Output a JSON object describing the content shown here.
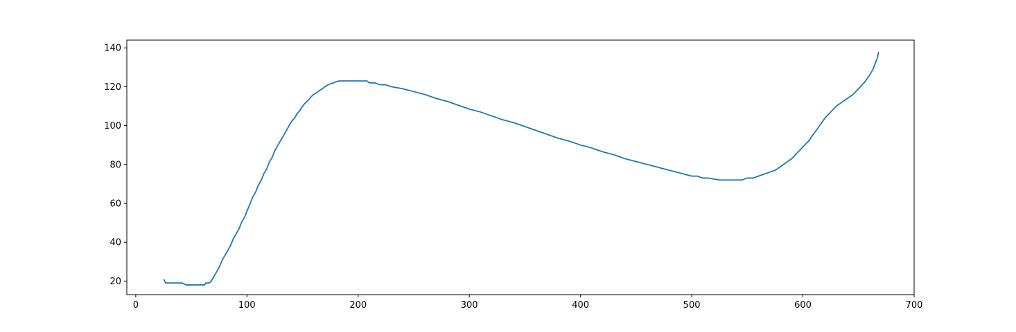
{
  "chart_data": {
    "type": "line",
    "title": "",
    "xlabel": "",
    "ylabel": "",
    "xlim": [
      -8,
      700
    ],
    "ylim": [
      13,
      144
    ],
    "xticks": [
      0,
      100,
      200,
      300,
      400,
      500,
      600,
      700
    ],
    "yticks": [
      20,
      40,
      60,
      80,
      100,
      120,
      140
    ],
    "xtick_labels": [
      "0",
      "100",
      "200",
      "300",
      "400",
      "500",
      "600",
      "700"
    ],
    "ytick_labels": [
      "20",
      "40",
      "60",
      "80",
      "100",
      "120",
      "140"
    ],
    "grid": false,
    "legend": "none",
    "series": [
      {
        "color": "#1f77b4",
        "points": [
          [
            25,
            21
          ],
          [
            27,
            19
          ],
          [
            30,
            19
          ],
          [
            35,
            19
          ],
          [
            40,
            19
          ],
          [
            42,
            19
          ],
          [
            45,
            18
          ],
          [
            50,
            18
          ],
          [
            55,
            18
          ],
          [
            60,
            18
          ],
          [
            62,
            18
          ],
          [
            63,
            19
          ],
          [
            66,
            19
          ],
          [
            68,
            20
          ],
          [
            70,
            22
          ],
          [
            72,
            24
          ],
          [
            75,
            27
          ],
          [
            78,
            31
          ],
          [
            80,
            33
          ],
          [
            82,
            35
          ],
          [
            85,
            38
          ],
          [
            88,
            42
          ],
          [
            90,
            44
          ],
          [
            93,
            47
          ],
          [
            95,
            50
          ],
          [
            98,
            53
          ],
          [
            100,
            56
          ],
          [
            103,
            60
          ],
          [
            105,
            63
          ],
          [
            108,
            66
          ],
          [
            110,
            69
          ],
          [
            113,
            72
          ],
          [
            115,
            75
          ],
          [
            118,
            78
          ],
          [
            120,
            81
          ],
          [
            123,
            84
          ],
          [
            125,
            87
          ],
          [
            128,
            90
          ],
          [
            130,
            92
          ],
          [
            133,
            95
          ],
          [
            135,
            97
          ],
          [
            138,
            100
          ],
          [
            140,
            102
          ],
          [
            143,
            104
          ],
          [
            145,
            106
          ],
          [
            148,
            108
          ],
          [
            150,
            110
          ],
          [
            153,
            112
          ],
          [
            155,
            113
          ],
          [
            158,
            115
          ],
          [
            160,
            116
          ],
          [
            163,
            117
          ],
          [
            165,
            118
          ],
          [
            168,
            119
          ],
          [
            170,
            120
          ],
          [
            173,
            121
          ],
          [
            175,
            121.5
          ],
          [
            178,
            122
          ],
          [
            180,
            122.5
          ],
          [
            183,
            123
          ],
          [
            190,
            123
          ],
          [
            200,
            123
          ],
          [
            208,
            123
          ],
          [
            210,
            122
          ],
          [
            215,
            122
          ],
          [
            220,
            121
          ],
          [
            225,
            121
          ],
          [
            230,
            120
          ],
          [
            240,
            119
          ],
          [
            250,
            117.5
          ],
          [
            260,
            116
          ],
          [
            270,
            114
          ],
          [
            280,
            112.5
          ],
          [
            290,
            110.5
          ],
          [
            300,
            108.5
          ],
          [
            310,
            107
          ],
          [
            320,
            105
          ],
          [
            330,
            103
          ],
          [
            340,
            101.5
          ],
          [
            350,
            99.5
          ],
          [
            360,
            97.5
          ],
          [
            370,
            95.5
          ],
          [
            380,
            93.5
          ],
          [
            390,
            92
          ],
          [
            400,
            90
          ],
          [
            410,
            88.5
          ],
          [
            420,
            86.5
          ],
          [
            430,
            85
          ],
          [
            440,
            83
          ],
          [
            450,
            81.5
          ],
          [
            460,
            80
          ],
          [
            470,
            78.5
          ],
          [
            480,
            77
          ],
          [
            490,
            75.5
          ],
          [
            500,
            74
          ],
          [
            505,
            74
          ],
          [
            510,
            73
          ],
          [
            515,
            73
          ],
          [
            520,
            72.5
          ],
          [
            525,
            72
          ],
          [
            530,
            72
          ],
          [
            535,
            72
          ],
          [
            540,
            72
          ],
          [
            545,
            72
          ],
          [
            550,
            73
          ],
          [
            555,
            73
          ],
          [
            560,
            74
          ],
          [
            565,
            75
          ],
          [
            570,
            76
          ],
          [
            575,
            77
          ],
          [
            580,
            79
          ],
          [
            585,
            81
          ],
          [
            590,
            83
          ],
          [
            595,
            86
          ],
          [
            600,
            89
          ],
          [
            605,
            92
          ],
          [
            610,
            96
          ],
          [
            615,
            100
          ],
          [
            620,
            104
          ],
          [
            625,
            107
          ],
          [
            630,
            110
          ],
          [
            635,
            112
          ],
          [
            640,
            114
          ],
          [
            645,
            116
          ],
          [
            650,
            119
          ],
          [
            655,
            122
          ],
          [
            660,
            126
          ],
          [
            663,
            129
          ],
          [
            665,
            132
          ],
          [
            667,
            135
          ],
          [
            668,
            138
          ]
        ]
      }
    ]
  }
}
